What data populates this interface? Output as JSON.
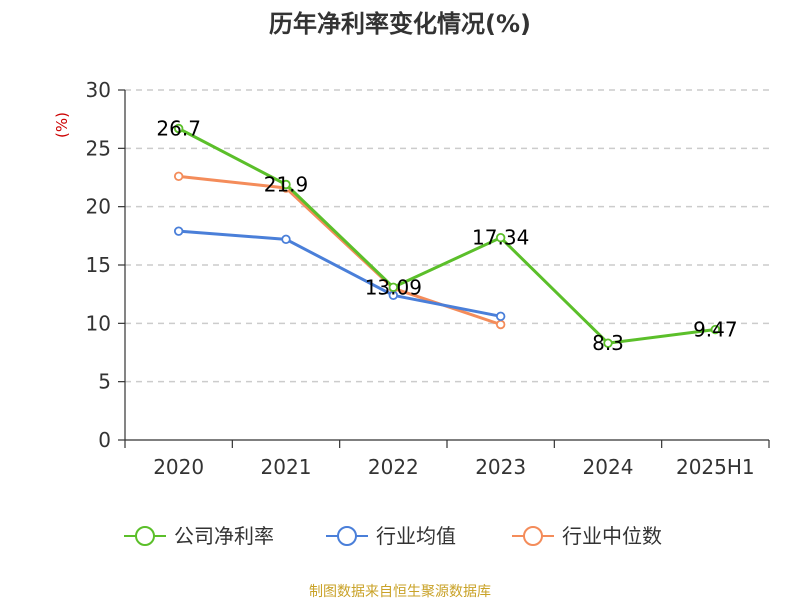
{
  "chart_data": {
    "type": "line",
    "title": "历年净利率变化情况(%)",
    "ylabel": "(%)",
    "categories": [
      "2020",
      "2021",
      "2022",
      "2023",
      "2024",
      "2025H1"
    ],
    "ylim": [
      0,
      30
    ],
    "yticks": [
      0,
      5,
      10,
      15,
      20,
      25,
      30
    ],
    "grid": true,
    "legend_position": "bottom",
    "series": [
      {
        "name": "公司净利率",
        "color": "#5bbf2a",
        "values": [
          26.7,
          21.9,
          13.09,
          17.34,
          8.3,
          9.47
        ],
        "labels": [
          "26.7",
          "21.9",
          "13.09",
          "17.34",
          "8.3",
          "9.47"
        ]
      },
      {
        "name": "行业均值",
        "color": "#4a7fd9",
        "values": [
          17.9,
          17.2,
          12.4,
          10.6,
          null,
          null
        ]
      },
      {
        "name": "行业中位数",
        "color": "#f48c5a",
        "values": [
          22.6,
          21.6,
          13.0,
          9.9,
          null,
          null
        ]
      }
    ]
  },
  "colors": {
    "ylabel": "#cc0000",
    "source": "#c9a227",
    "axis": "#333333",
    "grid": "#cccccc"
  },
  "source": "制图数据来自恒生聚源数据库"
}
